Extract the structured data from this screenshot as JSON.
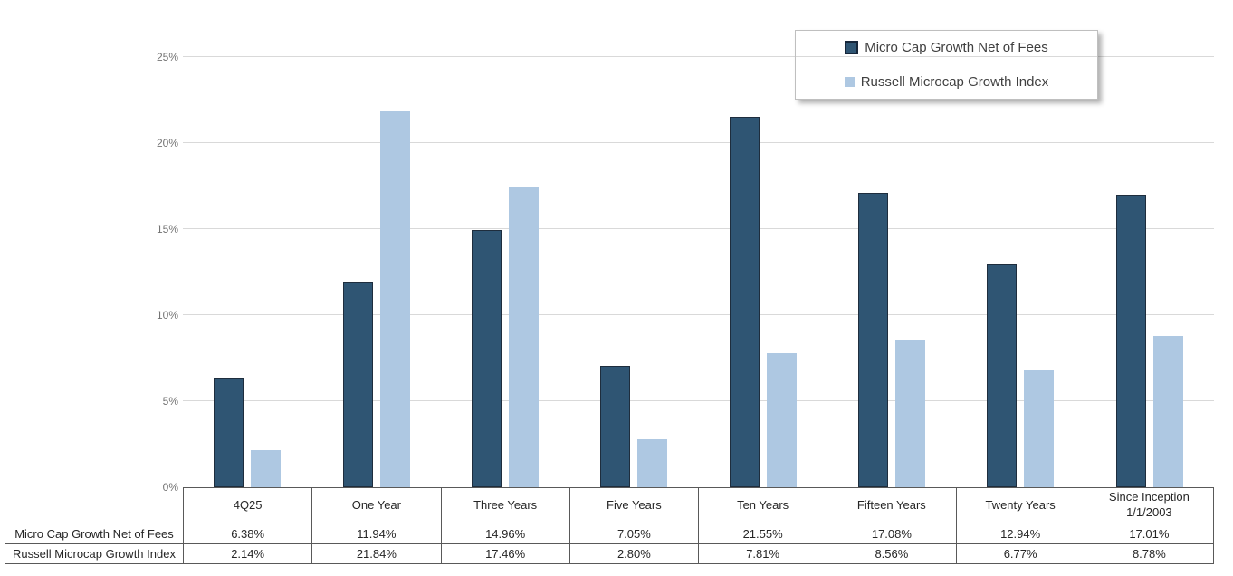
{
  "page": {
    "background": "#ffffff"
  },
  "colors": {
    "series1": "#2f5573",
    "series2": "#aec8e2",
    "gridline": "#d9d9d9",
    "axis_text": "#737373",
    "table_border": "#595959",
    "table_text": "#262626",
    "legend_border": "#bfbfbf",
    "bar_border": "#1e2d3d"
  },
  "chart_data": {
    "type": "bar",
    "categories": [
      "4Q25",
      "One Year",
      "Three Years",
      "Five Years",
      "Ten Years",
      "Fifteen Years",
      "Twenty Years",
      "Since Inception 1/1/2003"
    ],
    "series": [
      {
        "name": "Micro Cap Growth Net of Fees",
        "color": "#2f5573",
        "values": [
          6.38,
          11.94,
          14.96,
          7.05,
          21.55,
          17.08,
          12.94,
          17.01
        ]
      },
      {
        "name": "Russell Microcap Growth Index",
        "color": "#aec8e2",
        "values": [
          2.14,
          21.84,
          17.46,
          2.8,
          7.81,
          8.56,
          6.77,
          8.78
        ]
      }
    ],
    "title": "",
    "xlabel": "",
    "ylabel": "",
    "ylim": [
      0,
      25
    ],
    "ytick_step": 5,
    "ytick_labels": [
      "0%",
      "5%",
      "10%",
      "15%",
      "20%",
      "25%"
    ],
    "grid": true,
    "legend_position": "top-right",
    "value_format": "percent"
  },
  "table": {
    "corner": "",
    "columns": [
      "4Q25",
      "One Year",
      "Three Years",
      "Five Years",
      "Ten Years",
      "Fifteen Years",
      "Twenty Years",
      "Since Inception 1/1/2003"
    ],
    "rows": [
      {
        "label": "Micro Cap Growth Net of Fees",
        "values": [
          "6.38%",
          "11.94%",
          "14.96%",
          "7.05%",
          "21.55%",
          "17.08%",
          "12.94%",
          "17.01%"
        ]
      },
      {
        "label": "Russell Microcap Growth Index",
        "values": [
          "2.14%",
          "21.84%",
          "17.46%",
          "2.80%",
          "7.81%",
          "8.56%",
          "6.77%",
          "8.78%"
        ]
      }
    ]
  }
}
